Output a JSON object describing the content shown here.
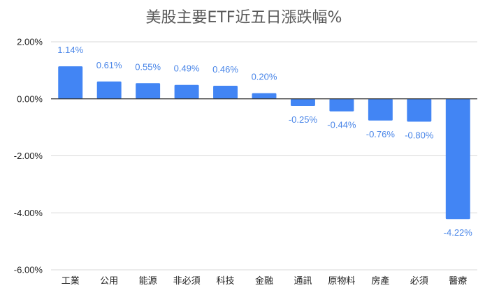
{
  "chart_data": {
    "type": "bar",
    "title": "美股主要ETF近五日漲跌幅%",
    "xlabel": "",
    "ylabel": "",
    "categories": [
      "工業",
      "公用",
      "能源",
      "非必須",
      "科技",
      "金融",
      "通訊",
      "原物料",
      "房產",
      "必須",
      "醫療"
    ],
    "values": [
      1.14,
      0.61,
      0.55,
      0.49,
      0.46,
      0.2,
      -0.25,
      -0.44,
      -0.76,
      -0.8,
      -4.22
    ],
    "data_labels": [
      "1.14%",
      "0.61%",
      "0.55%",
      "0.49%",
      "0.46%",
      "0.20%",
      "-0.25%",
      "-0.44%",
      "-0.76%",
      "-0.80%",
      "-4.22%"
    ],
    "ylim": [
      -6,
      2
    ],
    "yticks": [
      2,
      0,
      -2,
      -4,
      -6
    ],
    "ytick_labels": [
      "2.00%",
      "0.00%",
      "-2.00%",
      "-4.00%",
      "-6.00%"
    ],
    "grid": true,
    "legend": "none",
    "bar_color": "#4285f4",
    "label_color": "#4a86e8"
  }
}
